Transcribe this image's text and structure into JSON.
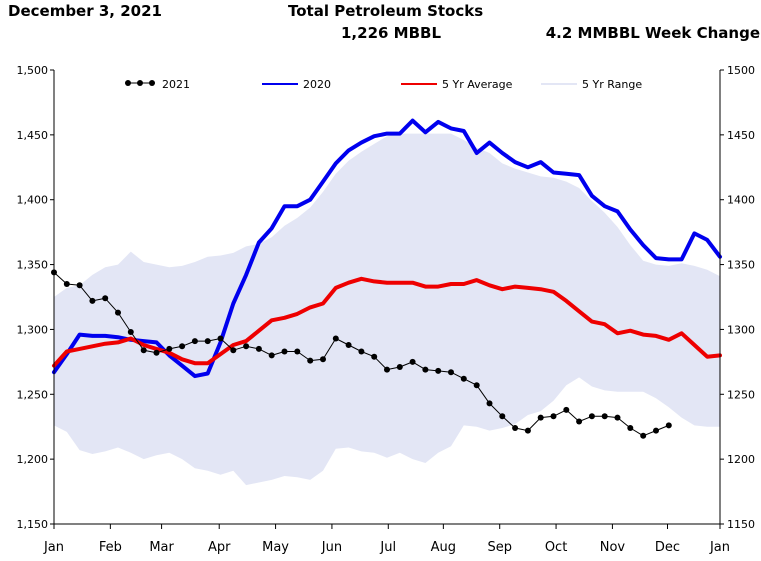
{
  "header": {
    "date": "December 3, 2021",
    "title": "Total Petroleum Stocks",
    "stocks": "1,226 MBBL",
    "week_change": "4.2 MMBBL Week Change"
  },
  "colors": {
    "y2021": "#000000",
    "y2020": "#0000ee",
    "avg5": "#ee0000",
    "range5": "#e3e6f5"
  },
  "chart_data": {
    "type": "line",
    "title": "Total Petroleum Stocks",
    "xlabel": "",
    "ylabel": "",
    "ylim": [
      1150,
      1500
    ],
    "xlim": [
      0,
      52
    ],
    "y_ticks": [
      1150,
      1200,
      1250,
      1300,
      1350,
      1400,
      1450,
      1500
    ],
    "y_tick_labels_left": [
      "1,150",
      "1,200",
      "1,250",
      "1,300",
      "1,350",
      "1,400",
      "1,450",
      "1,500"
    ],
    "y_tick_labels_right": [
      "1150",
      "1200",
      "1250",
      "1300",
      "1350",
      "1400",
      "1450",
      "1500"
    ],
    "x_tick_labels": [
      "Jan",
      "Feb",
      "Mar",
      "Apr",
      "May",
      "Jun",
      "Jul",
      "Aug",
      "Sep",
      "Oct",
      "Nov",
      "Dec",
      "Jan"
    ],
    "x_tick_weeks": [
      0,
      4.4,
      8.4,
      12.9,
      17.3,
      21.7,
      26.1,
      30.4,
      34.8,
      39.2,
      43.6,
      47.9,
      52
    ],
    "legend": [
      "2021",
      "2020",
      "5 Yr Average",
      "5 Yr Range"
    ],
    "legend_position": "top",
    "series": [
      {
        "name": "2021",
        "weeks": [
          0,
          1,
          2,
          3,
          4,
          5,
          6,
          7,
          8,
          9,
          10,
          11,
          12,
          13,
          14,
          15,
          16,
          17,
          18,
          19,
          20,
          21,
          22,
          23,
          24,
          25,
          26,
          27,
          28,
          29,
          30,
          31,
          32,
          33,
          34,
          35,
          36,
          37,
          38,
          39,
          40,
          41,
          42,
          43,
          44,
          45,
          46,
          47,
          48
        ],
        "values": [
          1344,
          1335,
          1334,
          1322,
          1324,
          1313,
          1298,
          1284,
          1282,
          1285,
          1287,
          1291,
          1291,
          1293,
          1284,
          1287,
          1285,
          1280,
          1283,
          1283,
          1276,
          1277,
          1293,
          1288,
          1283,
          1279,
          1269,
          1271,
          1275,
          1269,
          1268,
          1267,
          1262,
          1257,
          1243,
          1233,
          1224,
          1222,
          1232,
          1233,
          1238,
          1229,
          1233,
          1233,
          1232,
          1224,
          1218,
          1222,
          1226
        ]
      },
      {
        "name": "2020",
        "weeks": [
          0,
          1,
          2,
          3,
          4,
          5,
          6,
          7,
          8,
          9,
          10,
          11,
          12,
          13,
          14,
          15,
          16,
          17,
          18,
          19,
          20,
          21,
          22,
          23,
          24,
          25,
          26,
          27,
          28,
          29,
          30,
          31,
          32,
          33,
          34,
          35,
          36,
          37,
          38,
          39,
          40,
          41,
          42,
          43,
          44,
          45,
          46,
          47,
          48,
          49,
          50,
          51,
          52
        ],
        "values": [
          1267,
          1281,
          1296,
          1295,
          1295,
          1294,
          1292,
          1291,
          1290,
          1280,
          1272,
          1264,
          1266,
          1290,
          1320,
          1342,
          1367,
          1378,
          1395,
          1395,
          1400,
          1414,
          1428,
          1438,
          1444,
          1449,
          1451,
          1451,
          1461,
          1452,
          1460,
          1455,
          1453,
          1436,
          1444,
          1436,
          1429,
          1425,
          1429,
          1421,
          1420,
          1419,
          1403,
          1395,
          1391,
          1377,
          1365,
          1355,
          1354,
          1354,
          1374,
          1369,
          1356
        ]
      },
      {
        "name": "5 Yr Average",
        "weeks": [
          0,
          1,
          2,
          3,
          4,
          5,
          6,
          7,
          8,
          9,
          10,
          11,
          12,
          13,
          14,
          15,
          16,
          17,
          18,
          19,
          20,
          21,
          22,
          23,
          24,
          25,
          26,
          27,
          28,
          29,
          30,
          31,
          32,
          33,
          34,
          35,
          36,
          37,
          38,
          39,
          40,
          41,
          42,
          43,
          44,
          45,
          46,
          47,
          48,
          49,
          50,
          51,
          52
        ],
        "values": [
          1272,
          1283,
          1285,
          1287,
          1289,
          1290,
          1293,
          1288,
          1285,
          1282,
          1277,
          1274,
          1274,
          1281,
          1288,
          1291,
          1299,
          1307,
          1309,
          1312,
          1317,
          1320,
          1332,
          1336,
          1339,
          1337,
          1336,
          1336,
          1336,
          1333,
          1333,
          1335,
          1335,
          1338,
          1334,
          1331,
          1333,
          1332,
          1331,
          1329,
          1322,
          1314,
          1306,
          1304,
          1297,
          1299,
          1296,
          1295,
          1292,
          1297,
          1288,
          1279,
          1280
        ]
      },
      {
        "name": "5 Yr Range",
        "weeks": [
          0,
          1,
          2,
          3,
          4,
          5,
          6,
          7,
          8,
          9,
          10,
          11,
          12,
          13,
          14,
          15,
          16,
          17,
          18,
          19,
          20,
          21,
          22,
          23,
          24,
          25,
          26,
          27,
          28,
          29,
          30,
          31,
          32,
          33,
          34,
          35,
          36,
          37,
          38,
          39,
          40,
          41,
          42,
          43,
          44,
          45,
          46,
          47,
          48,
          49,
          50,
          51,
          52
        ],
        "high": [
          1325,
          1332,
          1334,
          1342,
          1348,
          1350,
          1360,
          1352,
          1350,
          1348,
          1349,
          1352,
          1356,
          1357,
          1359,
          1364,
          1366,
          1371,
          1380,
          1386,
          1394,
          1406,
          1420,
          1430,
          1437,
          1443,
          1449,
          1451,
          1451,
          1451,
          1451,
          1451,
          1446,
          1440,
          1436,
          1428,
          1424,
          1421,
          1418,
          1417,
          1414,
          1409,
          1399,
          1390,
          1379,
          1365,
          1353,
          1350,
          1349,
          1351,
          1349,
          1346,
          1341
        ],
        "low": [
          1226,
          1221,
          1207,
          1204,
          1206,
          1209,
          1205,
          1200,
          1203,
          1205,
          1200,
          1193,
          1191,
          1188,
          1191,
          1180,
          1182,
          1184,
          1187,
          1186,
          1184,
          1191,
          1208,
          1209,
          1206,
          1205,
          1201,
          1205,
          1200,
          1197,
          1205,
          1210,
          1226,
          1225,
          1222,
          1224,
          1227,
          1234,
          1237,
          1245,
          1257,
          1263,
          1256,
          1253,
          1252,
          1252,
          1252,
          1247,
          1240,
          1232,
          1226,
          1225,
          1225
        ]
      }
    ]
  }
}
